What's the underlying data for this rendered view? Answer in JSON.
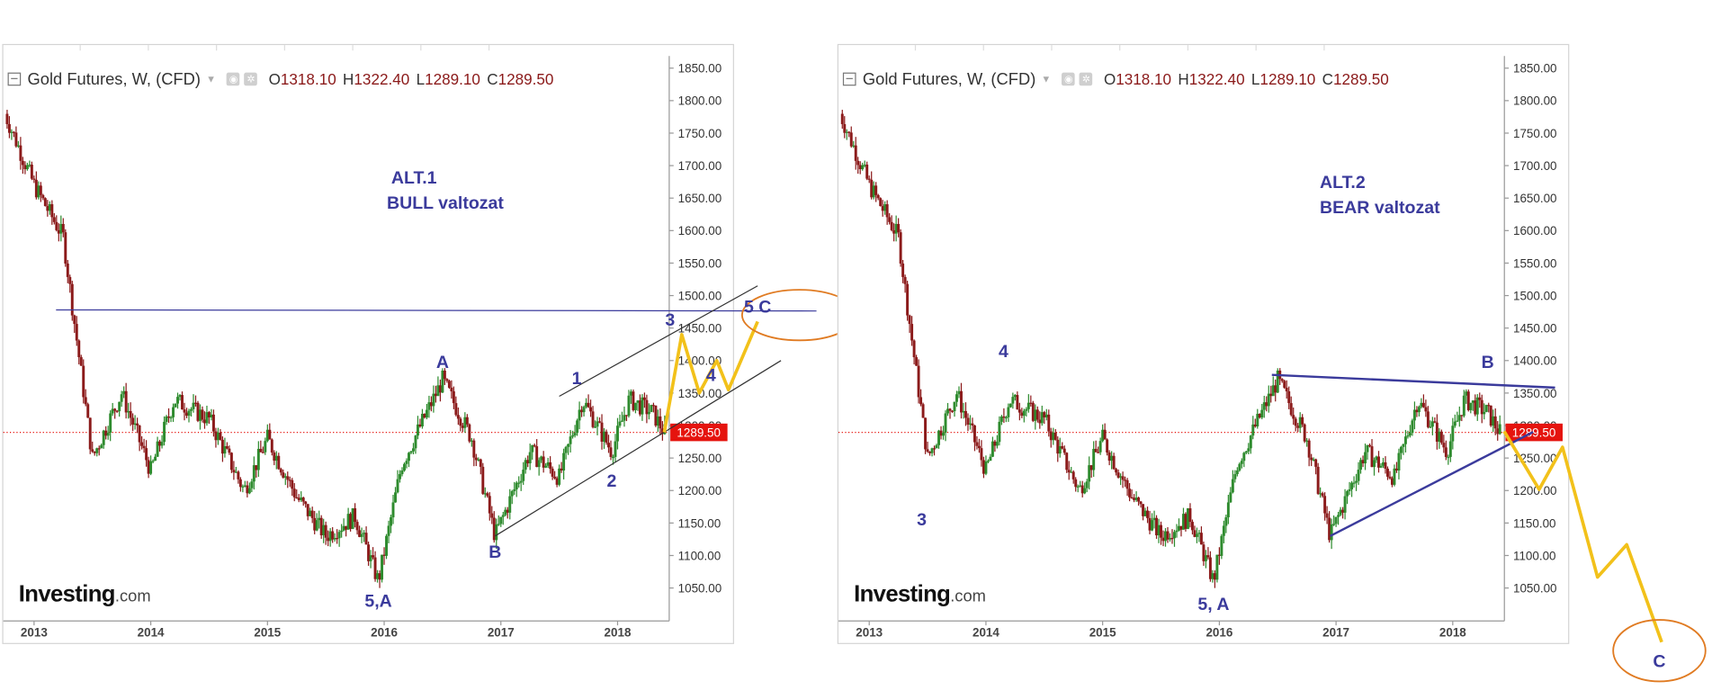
{
  "colors": {
    "bull": "#2e8b2e",
    "bear": "#8b1a1a",
    "wave_label": "#3b3b9c",
    "projection": "#f2c11a",
    "target_circle": "#e07b22",
    "price_tag": "#e5140e"
  },
  "panels": [
    {
      "header": {
        "title": "Gold Futures, W, (CFD)",
        "o_label": "O",
        "o": "1318.10",
        "h_label": "H",
        "h": "1322.40",
        "l_label": "L",
        "l": "1289.10",
        "c_label": "C",
        "c": "1289.50"
      },
      "logo": {
        "brand": "Investing",
        "suffix": ".com"
      },
      "note": {
        "line1": "ALT.1",
        "line2": "BULL valtozat"
      },
      "price_tag": "1289.50",
      "wave_labels": [
        "A",
        "B",
        "5,A",
        "1",
        "2",
        "3",
        "4",
        "5 C"
      ]
    },
    {
      "header": {
        "title": "Gold Futures, W, (CFD)",
        "o_label": "O",
        "o": "1318.10",
        "h_label": "H",
        "h": "1322.40",
        "l_label": "L",
        "l": "1289.10",
        "c_label": "C",
        "c": "1289.50"
      },
      "logo": {
        "brand": "Investing",
        "suffix": ".com"
      },
      "note": {
        "line1": "ALT.2",
        "line2": "BEAR valtozat"
      },
      "price_tag": "1289.50",
      "wave_labels": [
        "3",
        "4",
        "5, A",
        "B",
        "C"
      ]
    }
  ],
  "chart_data": [
    {
      "type": "candlestick",
      "title": "Gold Futures, W, (CFD)",
      "annotation": "ALT.1 BULL valtozat",
      "x_ticks": [
        "2013",
        "2014",
        "2015",
        "2016",
        "2017",
        "2018"
      ],
      "y_ticks": [
        "1050.00",
        "1100.00",
        "1150.00",
        "1200.00",
        "1250.00",
        "1300.00",
        "1350.00",
        "1400.00",
        "1450.00",
        "1500.00",
        "1550.00",
        "1600.00",
        "1650.00",
        "1700.00",
        "1750.00",
        "1800.00",
        "1850.00"
      ],
      "ylim": [
        1010,
        1860
      ],
      "last_price": 1289.5,
      "ohlc_last": {
        "open": 1318.1,
        "high": 1322.4,
        "low": 1289.1,
        "close": 1289.5
      },
      "approx_close_path": [
        [
          2012.75,
          1780
        ],
        [
          2013.0,
          1670
        ],
        [
          2013.25,
          1590
        ],
        [
          2013.33,
          1480
        ],
        [
          2013.5,
          1250
        ],
        [
          2013.75,
          1350
        ],
        [
          2014.0,
          1230
        ],
        [
          2014.2,
          1340
        ],
        [
          2014.5,
          1310
        ],
        [
          2014.8,
          1200
        ],
        [
          2015.0,
          1280
        ],
        [
          2015.25,
          1190
        ],
        [
          2015.5,
          1130
        ],
        [
          2015.75,
          1160
        ],
        [
          2015.95,
          1060
        ],
        [
          2016.15,
          1240
        ],
        [
          2016.5,
          1370
        ],
        [
          2016.75,
          1280
        ],
        [
          2016.95,
          1130
        ],
        [
          2017.25,
          1260
        ],
        [
          2017.5,
          1220
        ],
        [
          2017.7,
          1340
        ],
        [
          2017.95,
          1260
        ],
        [
          2018.1,
          1340
        ],
        [
          2018.3,
          1320
        ],
        [
          2018.4,
          1289.5
        ]
      ],
      "horizontal_line": 1478,
      "wave_points": [
        {
          "label": "A",
          "x": 2016.5,
          "y": 1375
        },
        {
          "label": "B",
          "x": 2016.95,
          "y": 1130
        },
        {
          "label": "5,A",
          "x": 2015.95,
          "y": 1055
        },
        {
          "label": "1",
          "x": 2017.65,
          "y": 1350
        },
        {
          "label": "2",
          "x": 2017.95,
          "y": 1240
        },
        {
          "label": "3",
          "x": 2018.45,
          "y": 1440
        },
        {
          "label": "4",
          "x": 2018.8,
          "y": 1355
        },
        {
          "label": "5 C",
          "x": 2019.2,
          "y": 1460
        }
      ],
      "channel": {
        "upper": [
          [
            2017.5,
            1345
          ],
          [
            2019.2,
            1515
          ]
        ],
        "lower": [
          [
            2016.95,
            1130
          ],
          [
            2019.4,
            1400
          ]
        ]
      },
      "projection_path": [
        [
          2018.4,
          1289.5
        ],
        [
          2018.55,
          1440
        ],
        [
          2018.7,
          1350
        ],
        [
          2018.85,
          1400
        ],
        [
          2018.95,
          1355
        ],
        [
          2019.2,
          1460
        ]
      ],
      "target_zone": {
        "label": "C",
        "center": [
          2019.5,
          1470
        ]
      }
    },
    {
      "type": "candlestick",
      "title": "Gold Futures, W, (CFD)",
      "annotation": "ALT.2 BEAR valtozat",
      "x_ticks": [
        "2013",
        "2014",
        "2015",
        "2016",
        "2017",
        "2018"
      ],
      "y_ticks": [
        "1050.00",
        "1100.00",
        "1150.00",
        "1200.00",
        "1250.00",
        "1300.00",
        "1350.00",
        "1400.00",
        "1450.00",
        "1500.00",
        "1550.00",
        "1600.00",
        "1650.00",
        "1700.00",
        "1750.00",
        "1800.00",
        "1850.00"
      ],
      "ylim": [
        1010,
        1860
      ],
      "last_price": 1289.5,
      "ohlc_last": {
        "open": 1318.1,
        "high": 1322.4,
        "low": 1289.1,
        "close": 1289.5
      },
      "wave_points": [
        {
          "label": "3",
          "x": 2013.45,
          "y": 1180
        },
        {
          "label": "4",
          "x": 2014.15,
          "y": 1392
        },
        {
          "label": "5, A",
          "x": 2015.95,
          "y": 1050
        },
        {
          "label": "B",
          "x": 2018.3,
          "y": 1375
        },
        {
          "label": "C",
          "x": 2020.0,
          "y": 960
        }
      ],
      "triangle": {
        "upper": [
          [
            2016.45,
            1378
          ],
          [
            2018.5,
            1355
          ]
        ],
        "lower": [
          [
            2016.95,
            1130
          ],
          [
            2018.5,
            1290
          ]
        ]
      },
      "projection_path": [
        [
          2018.45,
          1289.5
        ],
        [
          2018.75,
          1200
        ],
        [
          2018.95,
          1265
        ],
        [
          2019.25,
          1065
        ],
        [
          2019.5,
          1115
        ],
        [
          2019.8,
          965
        ]
      ],
      "target_zone": {
        "label": "C",
        "center": [
          2019.85,
          955
        ]
      }
    }
  ]
}
